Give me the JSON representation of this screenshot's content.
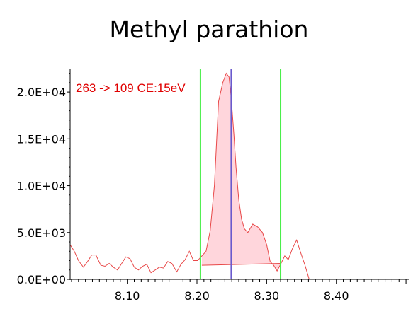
{
  "chart_data": {
    "type": "line",
    "title": "Methyl parathion",
    "trace_label": "263 -> 109 CE:15eV",
    "xlabel": "",
    "ylabel": "",
    "xlim": [
      8.018,
      8.505
    ],
    "ylim": [
      0,
      22500
    ],
    "x_ticks": [
      8.1,
      8.2,
      8.3,
      8.4
    ],
    "x_tick_labels": [
      "8.10",
      "8.20",
      "8.30",
      "8.40"
    ],
    "y_ticks": [
      0,
      5000,
      10000,
      15000,
      20000
    ],
    "y_tick_labels": [
      "0.0E+00",
      "5.0E+03",
      "1.0E+04",
      "1.5E+04",
      "2.0E+04"
    ],
    "series": [
      {
        "x": [
          8.018,
          8.024,
          8.03,
          8.037,
          8.043,
          8.049,
          8.055,
          8.062,
          8.068,
          8.074,
          8.08,
          8.086,
          8.092,
          8.098,
          8.104,
          8.11,
          8.116,
          8.122,
          8.128,
          8.134,
          8.14,
          8.146,
          8.152,
          8.158,
          8.164,
          8.171,
          8.177,
          8.183,
          8.189,
          8.195,
          8.201,
          8.207,
          8.213,
          8.219,
          8.225,
          8.231,
          8.237,
          8.242,
          8.246,
          8.249,
          8.253,
          8.256,
          8.26,
          8.264,
          8.268,
          8.273,
          8.28,
          8.287,
          8.294,
          8.3,
          8.305,
          8.31,
          8.315,
          8.32,
          8.326,
          8.331,
          8.337,
          8.343,
          8.349,
          8.355,
          8.361,
          8.367,
          8.373,
          8.38,
          8.392,
          8.42,
          8.46,
          8.505
        ],
        "values": [
          3700,
          3000,
          2000,
          1300,
          1900,
          2600,
          2600,
          1500,
          1400,
          1700,
          1300,
          1000,
          1700,
          2400,
          2200,
          1300,
          1000,
          1400,
          1600,
          700,
          1000,
          1300,
          1200,
          1900,
          1700,
          800,
          1600,
          2100,
          3000,
          2000,
          2000,
          2500,
          3000,
          5200,
          10000,
          19000,
          21000,
          22000,
          21600,
          19500,
          15500,
          12000,
          8500,
          6400,
          5400,
          5000,
          5900,
          5600,
          5000,
          3700,
          1900,
          1500,
          900,
          1600,
          2500,
          2100,
          3300,
          4200,
          2800,
          1500,
          0,
          0,
          0,
          0,
          0,
          0,
          0,
          0
        ]
      }
    ],
    "integration": {
      "start_x": 8.207,
      "end_x": 8.32,
      "baseline_start_y": 1500,
      "baseline_end_y": 1700,
      "fill_color": "#ffd6dc"
    },
    "lines": {
      "window_left_x": 8.205,
      "window_right_x": 8.32,
      "retention_time_x": 8.249,
      "window_color": "#44ee44",
      "retention_color": "#6a5acd",
      "trace_color": "#e84848"
    },
    "grid": false,
    "legend": "none"
  }
}
